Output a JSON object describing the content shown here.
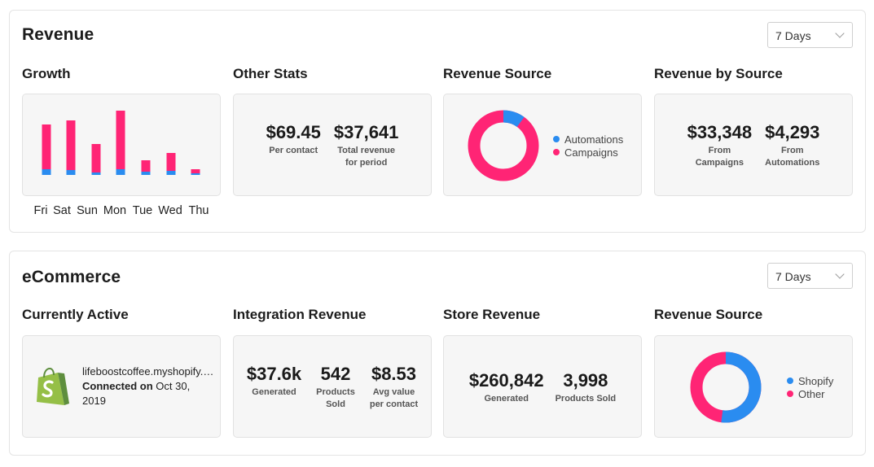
{
  "revenue": {
    "title": "Revenue",
    "period": "7 Days",
    "growth": {
      "title": "Growth",
      "days": [
        "Fri",
        "Sat",
        "Sun",
        "Mon",
        "Tue",
        "Wed",
        "Thu"
      ],
      "campaigns": [
        55,
        61,
        35,
        72,
        14,
        22,
        5
      ],
      "automations": [
        7,
        6,
        3,
        7,
        4,
        5,
        2
      ]
    },
    "other_stats": {
      "title": "Other Stats",
      "per_contact_value": "$69.45",
      "per_contact_label": "Per contact",
      "total_value": "$37,641",
      "total_label_1": "Total revenue",
      "total_label_2": "for period"
    },
    "revenue_source": {
      "title": "Revenue Source",
      "automations_label": "Automations",
      "campaigns_label": "Campaigns",
      "automations_share": 0.1,
      "campaigns_share": 0.9
    },
    "revenue_by_source": {
      "title": "Revenue by Source",
      "campaigns_value": "$33,348",
      "campaigns_label_1": "From",
      "campaigns_label_2": "Campaigns",
      "automations_value": "$4,293",
      "automations_label_1": "From",
      "automations_label_2": "Automations"
    }
  },
  "ecommerce": {
    "title": "eCommerce",
    "period": "7 Days",
    "currently_active": {
      "title": "Currently Active",
      "domain": "lifeboostcoffee.myshopify.com",
      "connected_label": "Connected on",
      "connected_date": "Oct 30, 2019"
    },
    "integration_revenue": {
      "title": "Integration Revenue",
      "generated_value": "$37.6k",
      "generated_label": "Generated",
      "products_value": "542",
      "products_label_1": "Products",
      "products_label_2": "Sold",
      "avg_value": "$8.53",
      "avg_label_1": "Avg value",
      "avg_label_2": "per contact"
    },
    "store_revenue": {
      "title": "Store Revenue",
      "generated_value": "$260,842",
      "generated_label": "Generated",
      "products_value": "3,998",
      "products_label": "Products Sold"
    },
    "revenue_source": {
      "title": "Revenue Source",
      "shopify_label": "Shopify",
      "other_label": "Other",
      "shopify_share": 0.52,
      "other_share": 0.48
    }
  },
  "colors": {
    "campaigns": "#ff2475",
    "automations": "#2a8cf0",
    "shopify_green": "#95bf47"
  }
}
